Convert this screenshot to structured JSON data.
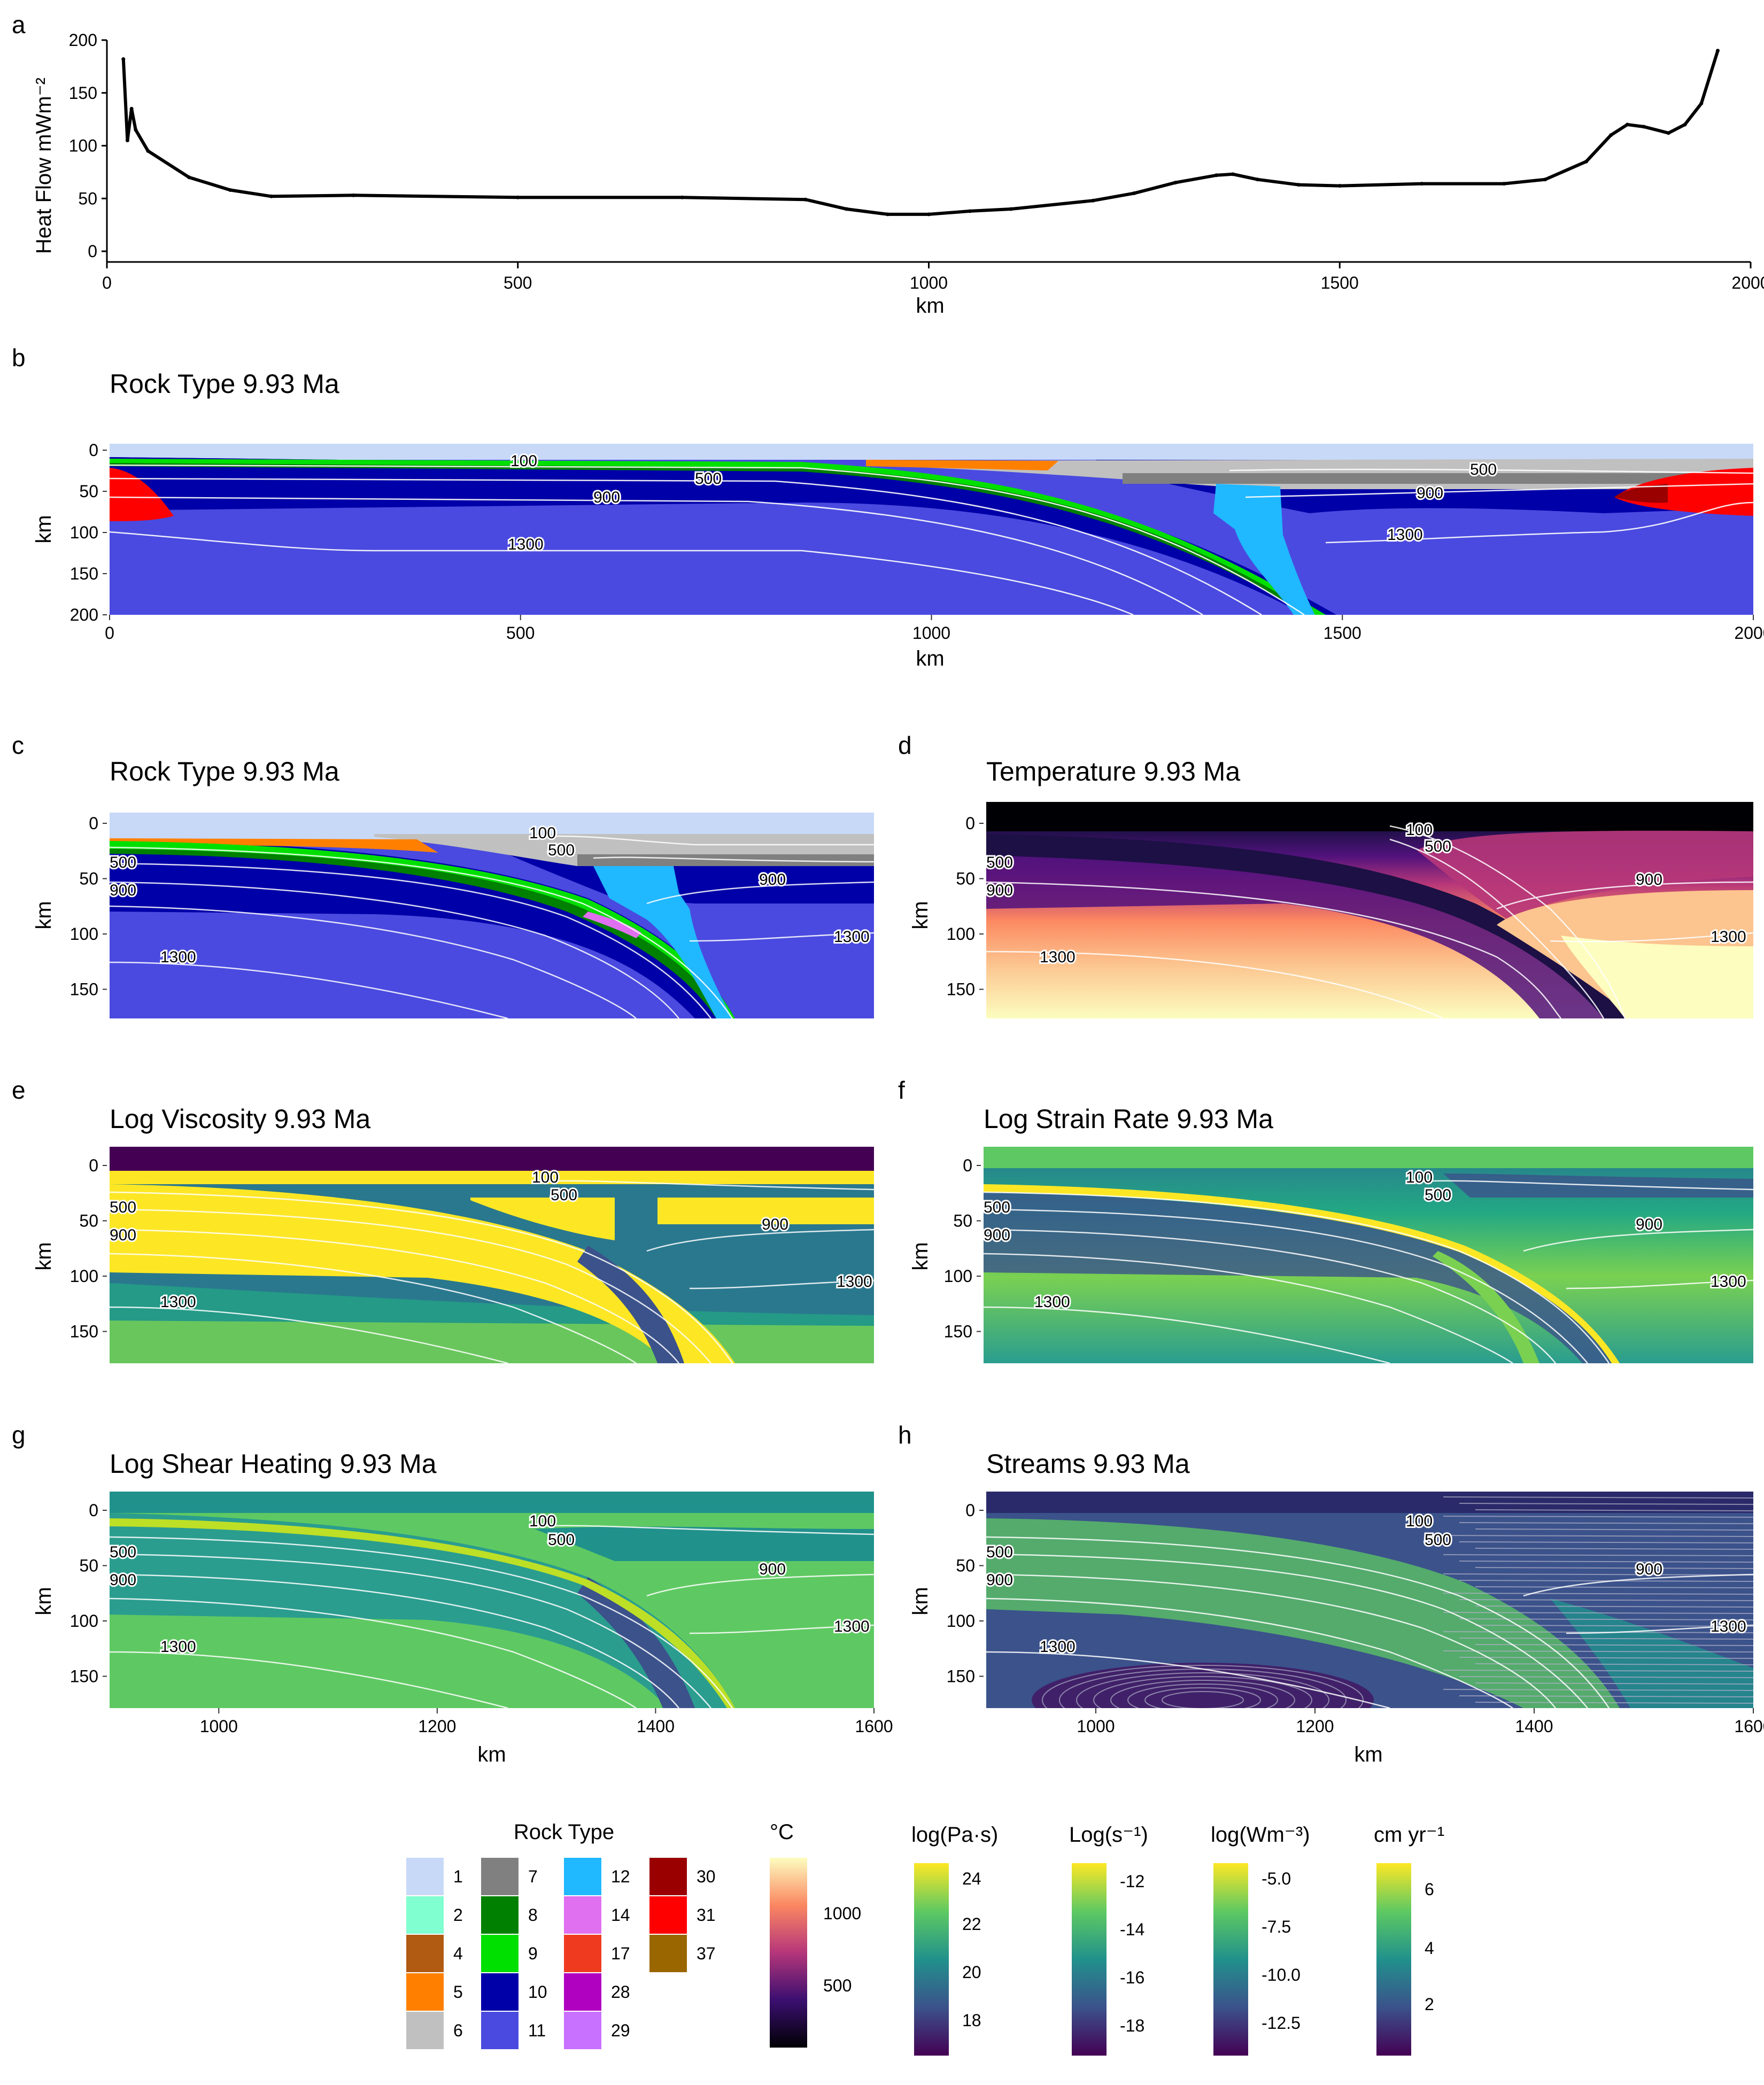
{
  "panels": {
    "a": "a",
    "b": "b",
    "c": "c",
    "d": "d",
    "e": "e",
    "f": "f",
    "g": "g",
    "h": "h"
  },
  "titles": {
    "b": "Rock Type  9.93 Ma",
    "c": "Rock Type  9.93 Ma",
    "d": "Temperature  9.93 Ma",
    "e": "Log Viscosity  9.93 Ma",
    "f": "Log Strain Rate  9.93 Ma",
    "g": "Log Shear Heating  9.93 Ma",
    "h": "Streams  9.93 Ma"
  },
  "axis": {
    "km": "km",
    "heatflow_ylabel": "Heat Flow  mWm⁻²"
  },
  "contour_labels": [
    "100",
    "500",
    "900",
    "1300"
  ],
  "chart_data": [
    {
      "type": "line",
      "panel": "a",
      "xlabel": "km",
      "ylabel": "Heat Flow  mWm-2",
      "xlim": [
        0,
        2000
      ],
      "ylim": [
        0,
        200
      ],
      "xticks": [
        0,
        500,
        1000,
        1500,
        2000
      ],
      "yticks": [
        0,
        50,
        100,
        150,
        200
      ],
      "x": [
        20,
        25,
        30,
        35,
        50,
        100,
        150,
        200,
        300,
        500,
        700,
        850,
        900,
        950,
        1000,
        1050,
        1100,
        1200,
        1250,
        1300,
        1350,
        1370,
        1400,
        1450,
        1500,
        1600,
        1700,
        1750,
        1800,
        1830,
        1850,
        1870,
        1900,
        1920,
        1940,
        1960
      ],
      "values": [
        182,
        105,
        135,
        115,
        95,
        70,
        58,
        52,
        53,
        51,
        51,
        49,
        40,
        35,
        35,
        38,
        40,
        48,
        55,
        65,
        72,
        73,
        68,
        63,
        62,
        64,
        64,
        68,
        85,
        110,
        120,
        118,
        112,
        120,
        140,
        190
      ]
    },
    {
      "type": "heatmap",
      "panel": "b",
      "title": "Rock Type  9.93 Ma",
      "xlabel": "km",
      "ylabel": "km",
      "xlim": [
        0,
        2000
      ],
      "ylim": [
        200,
        0
      ],
      "xticks": [
        0,
        500,
        1000,
        1500,
        2000
      ],
      "yticks": [
        0,
        50,
        100,
        150,
        200
      ],
      "isotherms_C": [
        100,
        500,
        900,
        1300
      ]
    },
    {
      "type": "heatmap",
      "panel": "c-h",
      "xlabel": "km",
      "ylabel": "km",
      "xlim": [
        900,
        1600
      ],
      "ylim": [
        185,
        0
      ],
      "xticks": [
        1000,
        1200,
        1400,
        1600
      ],
      "yticks": [
        0,
        50,
        100,
        150
      ],
      "isotherms_C": [
        100,
        500,
        900,
        1300
      ]
    }
  ],
  "legends": {
    "rock": {
      "title": "Rock Type",
      "items": [
        {
          "label": "1",
          "color": "#c8d9f8"
        },
        {
          "label": "2",
          "color": "#80ffd0"
        },
        {
          "label": "4",
          "color": "#b05a12"
        },
        {
          "label": "5",
          "color": "#ff8000"
        },
        {
          "label": "6",
          "color": "#c0c0c0"
        },
        {
          "label": "7",
          "color": "#808080"
        },
        {
          "label": "8",
          "color": "#008000"
        },
        {
          "label": "9",
          "color": "#00e000"
        },
        {
          "label": "10",
          "color": "#0000a8"
        },
        {
          "label": "11",
          "color": "#4a4ae0"
        },
        {
          "label": "12",
          "color": "#20b8ff"
        },
        {
          "label": "14",
          "color": "#e070f0"
        },
        {
          "label": "17",
          "color": "#f03a20"
        },
        {
          "label": "28",
          "color": "#b000c0"
        },
        {
          "label": "29",
          "color": "#c870ff"
        },
        {
          "label": "30",
          "color": "#9a0000"
        },
        {
          "label": "31",
          "color": "#ff0000"
        },
        {
          "label": "37",
          "color": "#9a6600"
        }
      ]
    },
    "temp": {
      "title": "°C",
      "ticks": [
        "1000",
        "500"
      ]
    },
    "visc": {
      "title": "log(Pa·s)",
      "ticks": [
        "24",
        "22",
        "20",
        "18"
      ]
    },
    "strain": {
      "title": "Log(s⁻¹)",
      "ticks": [
        "-12",
        "-14",
        "-16",
        "-18"
      ]
    },
    "shear": {
      "title": "log(Wm⁻³)",
      "ticks": [
        "-5.0",
        "-7.5",
        "-10.0",
        "-12.5"
      ]
    },
    "vel": {
      "title": "cm yr⁻¹",
      "ticks": [
        "6",
        "4",
        "2"
      ]
    }
  }
}
